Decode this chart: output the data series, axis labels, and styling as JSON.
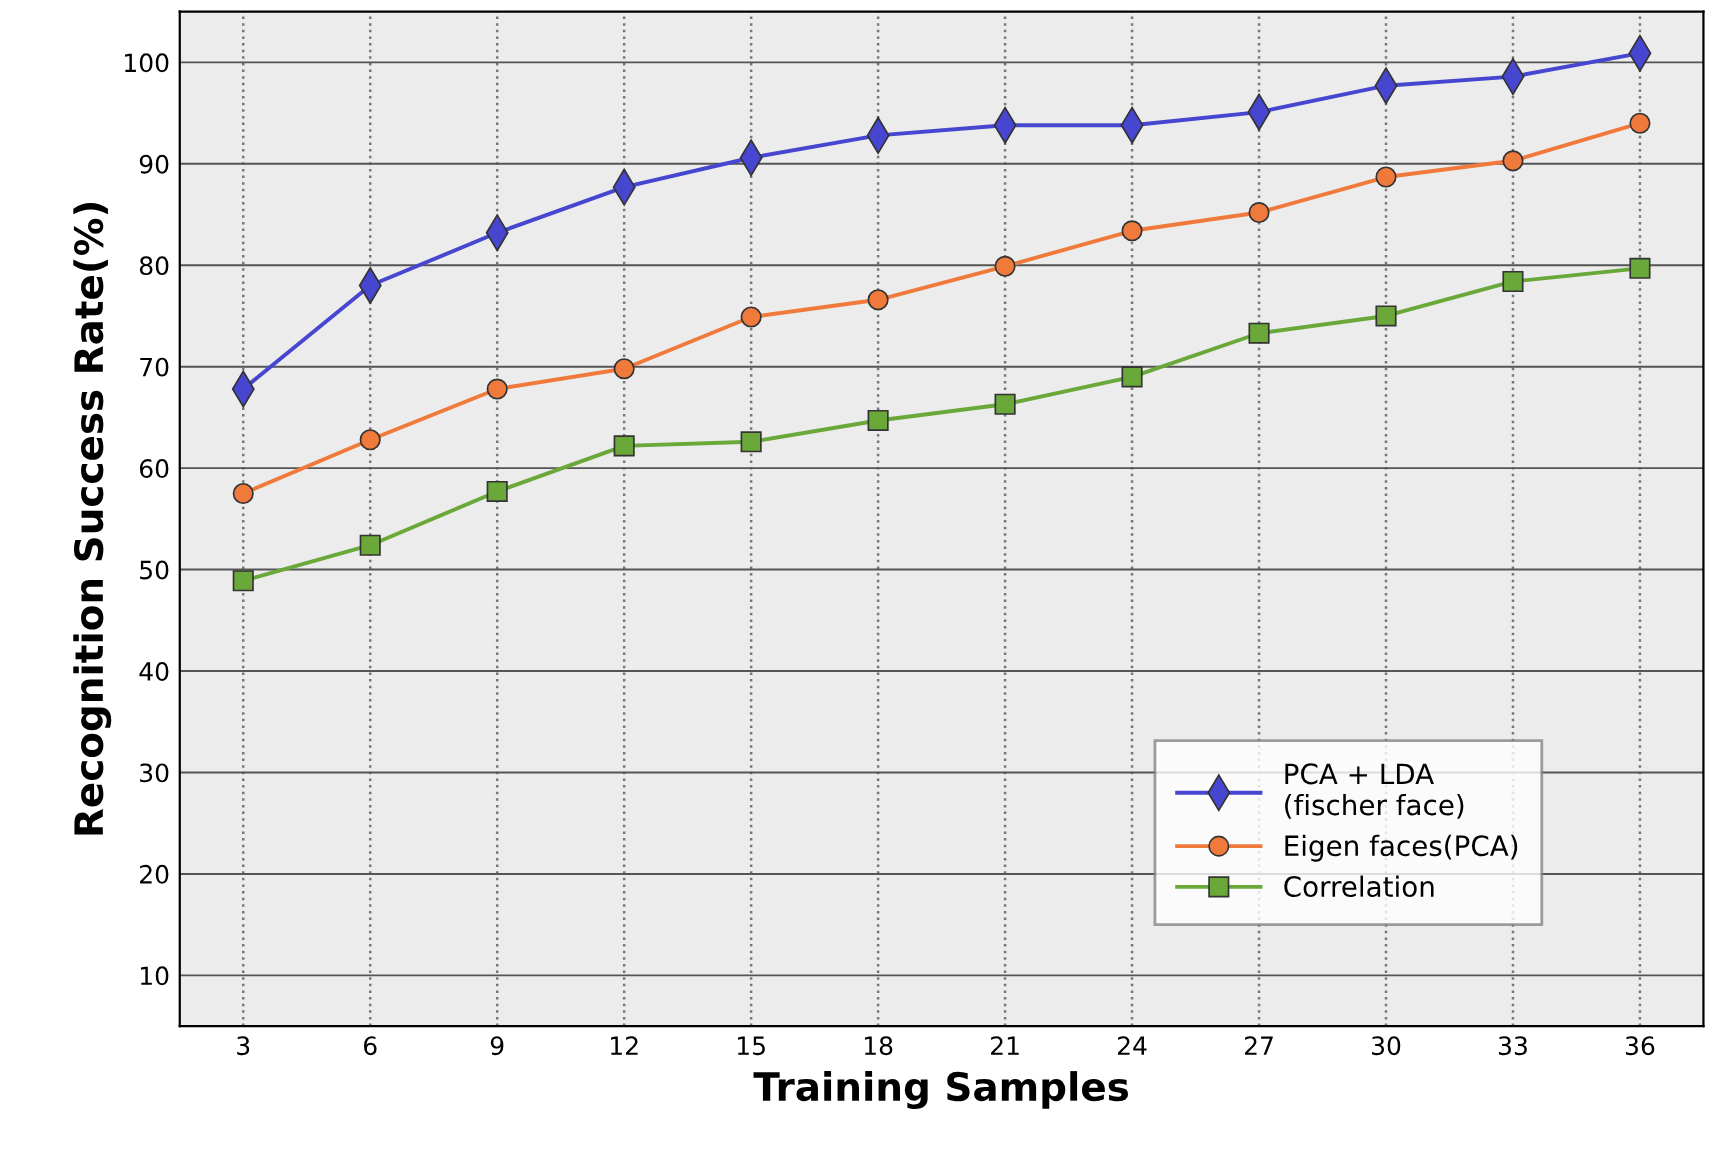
{
  "chart_data": {
    "type": "line",
    "xlabel": "Training Samples",
    "ylabel": "Recognition Success Rate(%)",
    "categories": [
      "3",
      "6",
      "9",
      "12",
      "15",
      "18",
      "21",
      "24",
      "27",
      "30",
      "33",
      "36"
    ],
    "series": [
      {
        "name": "PCA + LDA\n(fischer face)",
        "color": "#4646d0",
        "marker": "diamond",
        "values": [
          67.8,
          78.0,
          83.2,
          87.7,
          90.6,
          92.8,
          93.8,
          93.8,
          95.1,
          97.7,
          98.6,
          100.9
        ]
      },
      {
        "name": "Eigen faces(PCA)",
        "color": "#f07a3c",
        "marker": "circle",
        "values": [
          57.5,
          62.8,
          67.8,
          69.8,
          74.9,
          76.6,
          79.9,
          83.4,
          85.2,
          88.7,
          90.3,
          94.0
        ]
      },
      {
        "name": "Correlation",
        "color": "#6aa83a",
        "marker": "square",
        "values": [
          48.9,
          52.4,
          57.7,
          62.2,
          62.6,
          64.7,
          66.3,
          69.0,
          73.3,
          75.0,
          78.4,
          79.7
        ]
      }
    ],
    "ylim": [
      5,
      105
    ],
    "yticks": [
      10,
      20,
      30,
      40,
      50,
      60,
      70,
      80,
      90,
      100
    ],
    "grid": true,
    "legend": "bottom right",
    "line_style": "solid"
  }
}
